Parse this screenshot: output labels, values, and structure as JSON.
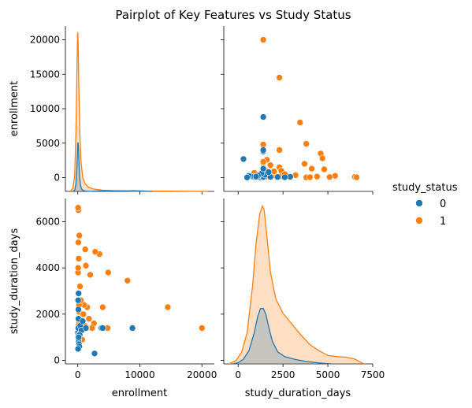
{
  "chart_data": {
    "type": "scatter",
    "title": "Pairplot of Key Features vs Study Status",
    "variables": [
      "enrollment",
      "study_duration_days"
    ],
    "hue": {
      "title": "study_status",
      "levels": [
        {
          "label": "0",
          "color": "#1f77b4"
        },
        {
          "label": "1",
          "color": "#ff7f0e"
        }
      ]
    },
    "axes": {
      "enrollment": {
        "label": "enrollment",
        "range": [
          -2000,
          22000
        ],
        "ticks": [
          0,
          5000,
          10000,
          15000,
          20000
        ],
        "tick_labels_y": [
          "0",
          "5000",
          "10000",
          "15000",
          "20000"
        ],
        "tick_labels_x": [
          "0",
          "10000",
          "20000"
        ]
      },
      "study_duration_days": {
        "label": "study_duration_days",
        "range": [
          -150,
          7000
        ],
        "ticks": [
          0,
          2000,
          4000,
          6000
        ],
        "tick_labels_y": [
          "0",
          "2000",
          "4000",
          "6000"
        ],
        "x_ticks": [
          0,
          2500,
          5000,
          7500
        ],
        "tick_labels_x": [
          "0",
          "2500",
          "5000",
          "7500"
        ],
        "x_range": [
          -800,
          7500
        ]
      }
    },
    "kde": {
      "enrollment": {
        "density_max": 19800,
        "series": [
          {
            "name": "0",
            "x": [
              -800,
              -500,
              -300,
              -150,
              -50,
              0,
              80,
              150,
              250,
              400,
              600,
              900,
              1300,
              2000,
              4000,
              8000,
              9000,
              12000
            ],
            "y": [
              0,
              150,
              900,
              3000,
              5200,
              6100,
              5800,
              4500,
              2400,
              900,
              300,
              100,
              40,
              10,
              80,
              60,
              100,
              0
            ]
          },
          {
            "name": "1",
            "x": [
              -1200,
              -800,
              -500,
              -300,
              -150,
              -50,
              0,
              60,
              150,
              300,
              500,
              800,
              1200,
              1800,
              2500,
              4000,
              6000,
              10000,
              15000,
              21000
            ],
            "y": [
              0,
              400,
              2000,
              7500,
              15000,
              19500,
              19800,
              18500,
              14000,
              8000,
              3800,
              1700,
              900,
              500,
              300,
              150,
              80,
              40,
              40,
              0
            ]
          }
        ]
      },
      "study_duration_days": {
        "density_max": 6600,
        "series": [
          {
            "name": "0",
            "x": [
              -300,
              0,
              300,
              600,
              900,
              1100,
              1250,
              1400,
              1550,
              1700,
              1900,
              2200,
              2600,
              3200,
              3800,
              4500,
              5200
            ],
            "y": [
              0,
              50,
              200,
              550,
              1300,
              2000,
              2300,
              2300,
              2050,
              1550,
              950,
              500,
              300,
              180,
              100,
              40,
              0
            ]
          },
          {
            "name": "1",
            "x": [
              -500,
              -100,
              200,
              500,
              800,
              1000,
              1200,
              1350,
              1450,
              1600,
              1800,
              2100,
              2500,
              3000,
              3500,
              4000,
              4500,
              5000,
              5500,
              6000,
              6500,
              7000
            ],
            "y": [
              0,
              150,
              500,
              1300,
              3200,
              5000,
              6200,
              6550,
              6400,
              5300,
              3800,
              2700,
              2100,
              1650,
              1200,
              800,
              550,
              350,
              300,
              280,
              200,
              0
            ]
          }
        ]
      }
    },
    "points": {
      "series": [
        {
          "name": "0",
          "enrollment": [
            50,
            100,
            150,
            200,
            250,
            30,
            80,
            120,
            400,
            600,
            1300,
            3800,
            8800,
            4000,
            120,
            60,
            90,
            100,
            40,
            300,
            150,
            2700,
            800
          ],
          "study_duration_days": [
            1000,
            900,
            800,
            700,
            600,
            1200,
            1400,
            1100,
            1500,
            1300,
            1400,
            1400,
            1400,
            1400,
            2900,
            2600,
            2200,
            1800,
            500,
            1100,
            1000,
            300,
            1700
          ]
        },
        {
          "name": "1",
          "enrollment": [
            20000,
            14500,
            8000,
            4800,
            4000,
            2600,
            1600,
            2300,
            1500,
            1300,
            1000,
            900,
            700,
            500,
            300,
            200,
            100,
            50,
            3500,
            2000,
            1200,
            800,
            600,
            400,
            250,
            150,
            80,
            40,
            4900,
            2800,
            1800,
            1100,
            700,
            350,
            180,
            90,
            30,
            60,
            120,
            200,
            500,
            900,
            1400
          ],
          "study_duration_days": [
            1400,
            2300,
            3450,
            1400,
            2300,
            1600,
            1400,
            1400,
            2300,
            4100,
            2400,
            1500,
            1300,
            1400,
            2600,
            2400,
            6500,
            6600,
            4600,
            3700,
            4800,
            1400,
            1400,
            1200,
            5400,
            4400,
            5100,
            3800,
            3800,
            4700,
            1800,
            1500,
            900,
            3200,
            1700,
            1500,
            2900,
            4000,
            1400,
            2100,
            2600,
            2000,
            1400
          ]
        }
      ]
    }
  }
}
